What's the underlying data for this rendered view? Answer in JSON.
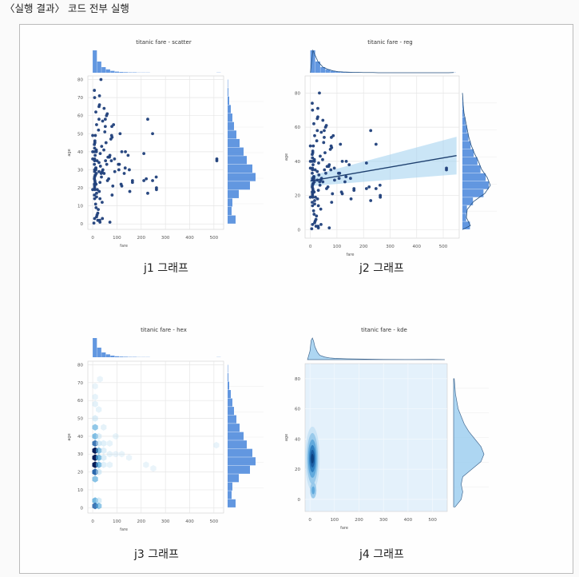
{
  "header": "〈실행 결과〉 코드 전부 실행",
  "captions": [
    "j1 그래프",
    "j2 그래프",
    "j3 그래프",
    "j4 그래프"
  ],
  "colors": {
    "point": "#1f3f7a",
    "bar": "#3b7dd8",
    "hexlight": "#d6ecf8",
    "regline": "#1d3f6e",
    "band": "#9ed0ee",
    "kde": "#2b7bbd"
  },
  "chart_data": [
    {
      "type": "scatter",
      "title": "titanic fare - scatter",
      "xlabel": "fare",
      "ylabel": "age",
      "x_ticks": [
        0,
        100,
        200,
        300,
        400,
        500
      ],
      "y_ticks": [
        0,
        10,
        20,
        30,
        40,
        50,
        60,
        70,
        80
      ],
      "xlim": [
        -20,
        540
      ],
      "ylim": [
        -3,
        82
      ],
      "points": [
        [
          7,
          22
        ],
        [
          71,
          38
        ],
        [
          8,
          26
        ],
        [
          53,
          35
        ],
        [
          8,
          35
        ],
        [
          8,
          29
        ],
        [
          52,
          54
        ],
        [
          21,
          2
        ],
        [
          11,
          27
        ],
        [
          30,
          14
        ],
        [
          16,
          4
        ],
        [
          26,
          58
        ],
        [
          8,
          20
        ],
        [
          31,
          39
        ],
        [
          8,
          14
        ],
        [
          16,
          55
        ],
        [
          29,
          2
        ],
        [
          13,
          31
        ],
        [
          18,
          35
        ],
        [
          26,
          34
        ],
        [
          16,
          15
        ],
        [
          35,
          28
        ],
        [
          146,
          38
        ],
        [
          9,
          19
        ],
        [
          263,
          19
        ],
        [
          7,
          40
        ],
        [
          28,
          66
        ],
        [
          8,
          42
        ],
        [
          83,
          21
        ],
        [
          27,
          18
        ],
        [
          8,
          3
        ],
        [
          15,
          40
        ],
        [
          262,
          26
        ],
        [
          8,
          70
        ],
        [
          61,
          24
        ],
        [
          32,
          32
        ],
        [
          15,
          28
        ],
        [
          8,
          30
        ],
        [
          55,
          45
        ],
        [
          10,
          23
        ],
        [
          135,
          40
        ],
        [
          77,
          35
        ],
        [
          211,
          24
        ],
        [
          50,
          51
        ],
        [
          7,
          16
        ],
        [
          247,
          24
        ],
        [
          13,
          30
        ],
        [
          110,
          33
        ],
        [
          66,
          25
        ],
        [
          80,
          16
        ],
        [
          153,
          18
        ],
        [
          512,
          35
        ],
        [
          512,
          36
        ],
        [
          227,
          58
        ],
        [
          80,
          48
        ],
        [
          47,
          28
        ],
        [
          57,
          60
        ],
        [
          263,
          20
        ],
        [
          120,
          21
        ],
        [
          78,
          49
        ],
        [
          221,
          25
        ],
        [
          90,
          36
        ],
        [
          164,
          24
        ],
        [
          134,
          31
        ],
        [
          247,
          50
        ],
        [
          164,
          23
        ],
        [
          120,
          40
        ],
        [
          106,
          33
        ],
        [
          151,
          30
        ],
        [
          108,
          30
        ],
        [
          113,
          50
        ],
        [
          26,
          65
        ],
        [
          79,
          54
        ],
        [
          69,
          37
        ],
        [
          227,
          17
        ],
        [
          211,
          39
        ],
        [
          75,
          47
        ],
        [
          39,
          29
        ],
        [
          86,
          55
        ],
        [
          52,
          58
        ],
        [
          60,
          61
        ],
        [
          28,
          71
        ],
        [
          34,
          80
        ],
        [
          7,
          74
        ],
        [
          13,
          62
        ],
        [
          9,
          45
        ],
        [
          11,
          49
        ],
        [
          24,
          52
        ],
        [
          47,
          64
        ],
        [
          41,
          57
        ],
        [
          14,
          9
        ],
        [
          21,
          6
        ],
        [
          30,
          1
        ],
        [
          18,
          5
        ],
        [
          12,
          11
        ],
        [
          23,
          8
        ],
        [
          39,
          12
        ],
        [
          7,
          44
        ],
        [
          9,
          46
        ],
        [
          15,
          41
        ],
        [
          10,
          38
        ],
        [
          8,
          36
        ],
        [
          7,
          33
        ],
        [
          13,
          31
        ],
        [
          7,
          25
        ],
        [
          9,
          24
        ],
        [
          14,
          22
        ],
        [
          26,
          29
        ],
        [
          10,
          27
        ],
        [
          8,
          21
        ],
        [
          16,
          17
        ],
        [
          19,
          19
        ],
        [
          30,
          23
        ],
        [
          36,
          26
        ],
        [
          42,
          30
        ],
        [
          58,
          33
        ],
        [
          63,
          37
        ],
        [
          91,
          29
        ],
        [
          37,
          43
        ],
        [
          46,
          41
        ],
        [
          117,
          22
        ],
        [
          130,
          28
        ],
        [
          5,
          0.5
        ],
        [
          0,
          19
        ],
        [
          0,
          36
        ],
        [
          0,
          40
        ],
        [
          0,
          49
        ],
        [
          71,
          1
        ],
        [
          40,
          3
        ]
      ],
      "marginal_x_hist": [
        120,
        60,
        30,
        18,
        10,
        6,
        4,
        3,
        2,
        2,
        1,
        1,
        1,
        0,
        0,
        0,
        0,
        0,
        0,
        0,
        0,
        0,
        0,
        0,
        0,
        0,
        0,
        0,
        1
      ],
      "marginal_y_hist": [
        20,
        10,
        12,
        28,
        56,
        70,
        62,
        48,
        40,
        30,
        22,
        16,
        12,
        8,
        4,
        2,
        1
      ]
    },
    {
      "type": "scatter",
      "title": "titanic fare - reg",
      "xlabel": "fare",
      "ylabel": "age",
      "x_ticks": [
        0,
        100,
        200,
        300,
        400,
        500
      ],
      "y_ticks": [
        0,
        20,
        40,
        60,
        80
      ],
      "xlim": [
        -20,
        560
      ],
      "ylim": [
        -5,
        90
      ],
      "regression": {
        "intercept": 28.5,
        "slope": 0.027
      },
      "points": [
        [
          7,
          22
        ],
        [
          71,
          38
        ],
        [
          8,
          26
        ],
        [
          53,
          35
        ],
        [
          8,
          35
        ],
        [
          8,
          29
        ],
        [
          52,
          54
        ],
        [
          21,
          2
        ],
        [
          11,
          27
        ],
        [
          30,
          14
        ],
        [
          16,
          4
        ],
        [
          26,
          58
        ],
        [
          8,
          20
        ],
        [
          31,
          39
        ],
        [
          8,
          14
        ],
        [
          16,
          55
        ],
        [
          29,
          2
        ],
        [
          13,
          31
        ],
        [
          18,
          35
        ],
        [
          26,
          34
        ],
        [
          16,
          15
        ],
        [
          35,
          28
        ],
        [
          146,
          38
        ],
        [
          9,
          19
        ],
        [
          263,
          19
        ],
        [
          7,
          40
        ],
        [
          28,
          66
        ],
        [
          8,
          42
        ],
        [
          83,
          21
        ],
        [
          27,
          18
        ],
        [
          8,
          3
        ],
        [
          15,
          40
        ],
        [
          262,
          26
        ],
        [
          8,
          70
        ],
        [
          61,
          24
        ],
        [
          32,
          32
        ],
        [
          15,
          28
        ],
        [
          8,
          30
        ],
        [
          55,
          45
        ],
        [
          10,
          23
        ],
        [
          135,
          40
        ],
        [
          77,
          35
        ],
        [
          211,
          24
        ],
        [
          50,
          51
        ],
        [
          7,
          16
        ],
        [
          247,
          24
        ],
        [
          13,
          30
        ],
        [
          110,
          33
        ],
        [
          66,
          25
        ],
        [
          80,
          16
        ],
        [
          153,
          18
        ],
        [
          512,
          35
        ],
        [
          512,
          36
        ],
        [
          227,
          58
        ],
        [
          80,
          48
        ],
        [
          47,
          28
        ],
        [
          57,
          60
        ],
        [
          263,
          20
        ],
        [
          120,
          21
        ],
        [
          78,
          49
        ],
        [
          221,
          25
        ],
        [
          90,
          36
        ],
        [
          164,
          24
        ],
        [
          134,
          31
        ],
        [
          247,
          50
        ],
        [
          164,
          23
        ],
        [
          120,
          40
        ],
        [
          106,
          33
        ],
        [
          151,
          30
        ],
        [
          108,
          30
        ],
        [
          113,
          50
        ],
        [
          26,
          65
        ],
        [
          79,
          54
        ],
        [
          69,
          37
        ],
        [
          227,
          17
        ],
        [
          211,
          39
        ],
        [
          75,
          47
        ],
        [
          39,
          29
        ],
        [
          86,
          55
        ],
        [
          52,
          58
        ],
        [
          60,
          61
        ],
        [
          28,
          71
        ],
        [
          34,
          80
        ],
        [
          7,
          74
        ],
        [
          13,
          62
        ],
        [
          9,
          45
        ],
        [
          11,
          49
        ],
        [
          24,
          52
        ],
        [
          47,
          64
        ],
        [
          41,
          57
        ],
        [
          14,
          9
        ],
        [
          21,
          6
        ],
        [
          30,
          1
        ],
        [
          18,
          5
        ],
        [
          12,
          11
        ],
        [
          23,
          8
        ],
        [
          39,
          12
        ],
        [
          7,
          44
        ],
        [
          9,
          46
        ],
        [
          15,
          41
        ],
        [
          10,
          38
        ],
        [
          8,
          36
        ],
        [
          7,
          33
        ],
        [
          13,
          31
        ],
        [
          7,
          25
        ],
        [
          9,
          24
        ],
        [
          14,
          22
        ],
        [
          26,
          29
        ],
        [
          10,
          27
        ],
        [
          8,
          21
        ],
        [
          16,
          17
        ],
        [
          19,
          19
        ],
        [
          30,
          23
        ],
        [
          36,
          26
        ],
        [
          42,
          30
        ],
        [
          58,
          33
        ],
        [
          63,
          37
        ],
        [
          91,
          29
        ],
        [
          37,
          43
        ],
        [
          46,
          41
        ],
        [
          117,
          22
        ],
        [
          130,
          28
        ],
        [
          5,
          0.5
        ],
        [
          0,
          19
        ],
        [
          0,
          36
        ],
        [
          0,
          40
        ],
        [
          0,
          49
        ],
        [
          71,
          1
        ],
        [
          40,
          3
        ]
      ],
      "marginal_x_hist": [
        120,
        60,
        30,
        18,
        10,
        6,
        4,
        3,
        2,
        2,
        1,
        1,
        1,
        0,
        0,
        0,
        0,
        0,
        0,
        0,
        0,
        0,
        0,
        0,
        0,
        0,
        0,
        0,
        1
      ],
      "marginal_y_hist": [
        20,
        10,
        12,
        28,
        56,
        70,
        62,
        48,
        40,
        30,
        22,
        16,
        12,
        8,
        4,
        2,
        1
      ]
    },
    {
      "type": "heatmap",
      "title": "titanic fare - hex",
      "xlabel": "fare",
      "ylabel": "age",
      "x_ticks": [
        0,
        100,
        200,
        300,
        400,
        500
      ],
      "y_ticks": [
        0,
        10,
        20,
        30,
        40,
        50,
        60,
        70,
        80
      ],
      "xlim": [
        -20,
        540
      ],
      "ylim": [
        -3,
        82
      ],
      "hex_cells": [
        [
          10,
          28,
          1.0
        ],
        [
          10,
          24,
          0.95
        ],
        [
          10,
          32,
          0.85
        ],
        [
          10,
          20,
          0.7
        ],
        [
          10,
          36,
          0.6
        ],
        [
          10,
          40,
          0.45
        ],
        [
          10,
          45,
          0.35
        ],
        [
          10,
          50,
          0.25
        ],
        [
          10,
          16,
          0.4
        ],
        [
          10,
          4,
          0.5
        ],
        [
          10,
          1,
          0.6
        ],
        [
          25,
          28,
          0.5
        ],
        [
          25,
          24,
          0.45
        ],
        [
          25,
          32,
          0.4
        ],
        [
          25,
          36,
          0.3
        ],
        [
          25,
          20,
          0.3
        ],
        [
          25,
          40,
          0.2
        ],
        [
          25,
          4,
          0.3
        ],
        [
          25,
          1,
          0.35
        ],
        [
          45,
          28,
          0.25
        ],
        [
          45,
          32,
          0.2
        ],
        [
          45,
          36,
          0.18
        ],
        [
          45,
          24,
          0.18
        ],
        [
          45,
          45,
          0.12
        ],
        [
          70,
          30,
          0.12
        ],
        [
          70,
          36,
          0.1
        ],
        [
          70,
          24,
          0.1
        ],
        [
          95,
          30,
          0.08
        ],
        [
          95,
          40,
          0.07
        ],
        [
          120,
          30,
          0.06
        ],
        [
          150,
          28,
          0.05
        ],
        [
          220,
          24,
          0.06
        ],
        [
          250,
          22,
          0.05
        ],
        [
          510,
          35,
          0.08
        ],
        [
          10,
          58,
          0.15
        ],
        [
          10,
          62,
          0.1
        ],
        [
          25,
          55,
          0.1
        ],
        [
          10,
          68,
          0.06
        ],
        [
          30,
          72,
          0.05
        ]
      ],
      "marginal_x_hist": [
        120,
        60,
        30,
        18,
        10,
        6,
        4,
        3,
        2,
        2,
        1,
        1,
        1,
        0,
        0,
        0,
        0,
        0,
        0,
        0,
        0,
        0,
        0,
        0,
        0,
        0,
        0,
        0,
        1
      ],
      "marginal_y_hist": [
        20,
        10,
        12,
        28,
        56,
        70,
        62,
        48,
        40,
        30,
        22,
        16,
        12,
        8,
        4,
        2,
        1
      ]
    },
    {
      "type": "heatmap",
      "title": "titanic fare - kde",
      "xlabel": "fare",
      "ylabel": "age",
      "x_ticks": [
        0,
        100,
        200,
        300,
        400,
        500
      ],
      "y_ticks": [
        0,
        20,
        40,
        60,
        80
      ],
      "xlim": [
        -20,
        560
      ],
      "ylim": [
        -8,
        90
      ],
      "kde_peak": {
        "fare": 10,
        "age": 27
      }
    }
  ]
}
